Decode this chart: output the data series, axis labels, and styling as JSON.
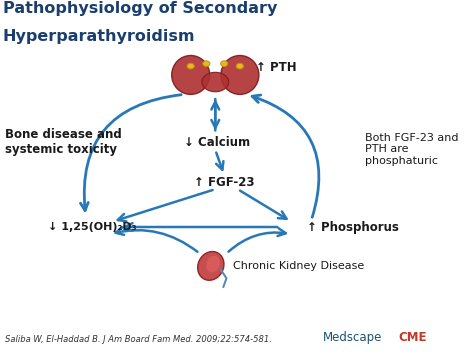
{
  "title_line1": "Pathophysiology of Secondary",
  "title_line2": "Hyperparathyroidism",
  "title_color": "#1a3e6e",
  "title_fontsize": 11.5,
  "background_color": "#ffffff",
  "arrow_color": "#2878b8",
  "labels": {
    "PTH": "↑ PTH",
    "Calcium": "↓ Calcium",
    "FGF23": "↑ FGF-23",
    "Phosphorus": "↑ Phosphorus",
    "VitD": "↓ 1,25(OH)₂D₃",
    "BoneDisease": "Bone disease and\nsystemic toxicity",
    "FGFandPTH": "Both FGF-23 and\nPTH are\nphosphaturic",
    "CKD": "Chronic Kidney Disease"
  },
  "label_fontsize": 8.5,
  "footnote": "Saliba W, El-Haddad B. J Am Board Fam Med. 2009;22:574-581.",
  "medscape_text": "Medscape",
  "cme_text": "CME",
  "footnote_fontsize": 6,
  "medscape_color": "#1a5276",
  "cme_color": "#c0392b"
}
